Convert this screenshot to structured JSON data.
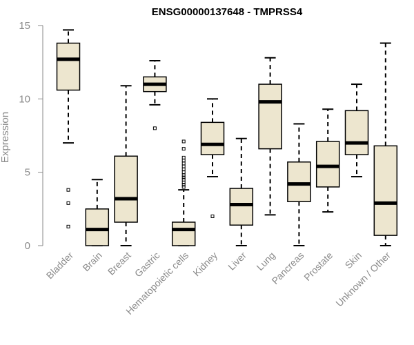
{
  "chart_data": {
    "type": "box",
    "title": "ENSG00000137648 - TMPRSS4",
    "xlabel": "",
    "ylabel": "Expression",
    "ylim": [
      0,
      15
    ],
    "yticks": [
      0,
      5,
      10,
      15
    ],
    "grid": false,
    "legend": "none",
    "colors": {
      "box_fill": "#ede6cf",
      "box_stroke": "#000000",
      "axis": "#8a8a8a"
    },
    "categories": [
      "Bladder",
      "Brain",
      "Breast",
      "Gastric",
      "Hematopoietic cells",
      "Kidney",
      "Liver",
      "Lung",
      "Pancreas",
      "Prostate",
      "Skin",
      "Unknown / Other"
    ],
    "boxes": [
      {
        "min": 7.0,
        "q1": 10.6,
        "median": 12.7,
        "q3": 13.8,
        "max": 14.7,
        "outliers": [
          3.8,
          2.9,
          1.3
        ]
      },
      {
        "min": 0.0,
        "q1": 0.0,
        "median": 1.1,
        "q3": 2.5,
        "max": 4.5,
        "outliers": []
      },
      {
        "min": 0.0,
        "q1": 1.6,
        "median": 3.2,
        "q3": 6.1,
        "max": 10.9,
        "outliers": []
      },
      {
        "min": 9.6,
        "q1": 10.5,
        "median": 11.0,
        "q3": 11.5,
        "max": 12.6,
        "outliers": [
          8.0
        ]
      },
      {
        "min": 0.0,
        "q1": 0.0,
        "median": 1.1,
        "q3": 1.6,
        "max": 3.8,
        "outliers": [
          4.0,
          4.15,
          4.3,
          4.5,
          4.65,
          4.8,
          5.0,
          5.2,
          5.4,
          5.6,
          5.8,
          6.0,
          6.6,
          7.1
        ]
      },
      {
        "min": 4.7,
        "q1": 6.2,
        "median": 6.9,
        "q3": 8.4,
        "max": 10.0,
        "outliers": [
          2.0
        ]
      },
      {
        "min": 0.0,
        "q1": 1.4,
        "median": 2.8,
        "q3": 3.9,
        "max": 7.3,
        "outliers": []
      },
      {
        "min": 2.1,
        "q1": 6.6,
        "median": 9.8,
        "q3": 11.0,
        "max": 12.8,
        "outliers": []
      },
      {
        "min": 0.0,
        "q1": 3.0,
        "median": 4.2,
        "q3": 5.7,
        "max": 8.3,
        "outliers": []
      },
      {
        "min": 2.3,
        "q1": 4.0,
        "median": 5.4,
        "q3": 7.1,
        "max": 9.3,
        "outliers": []
      },
      {
        "min": 4.7,
        "q1": 6.2,
        "median": 7.0,
        "q3": 9.2,
        "max": 11.0,
        "outliers": []
      },
      {
        "min": 0.0,
        "q1": 0.7,
        "median": 2.9,
        "q3": 6.8,
        "max": 13.8,
        "outliers": []
      }
    ]
  }
}
